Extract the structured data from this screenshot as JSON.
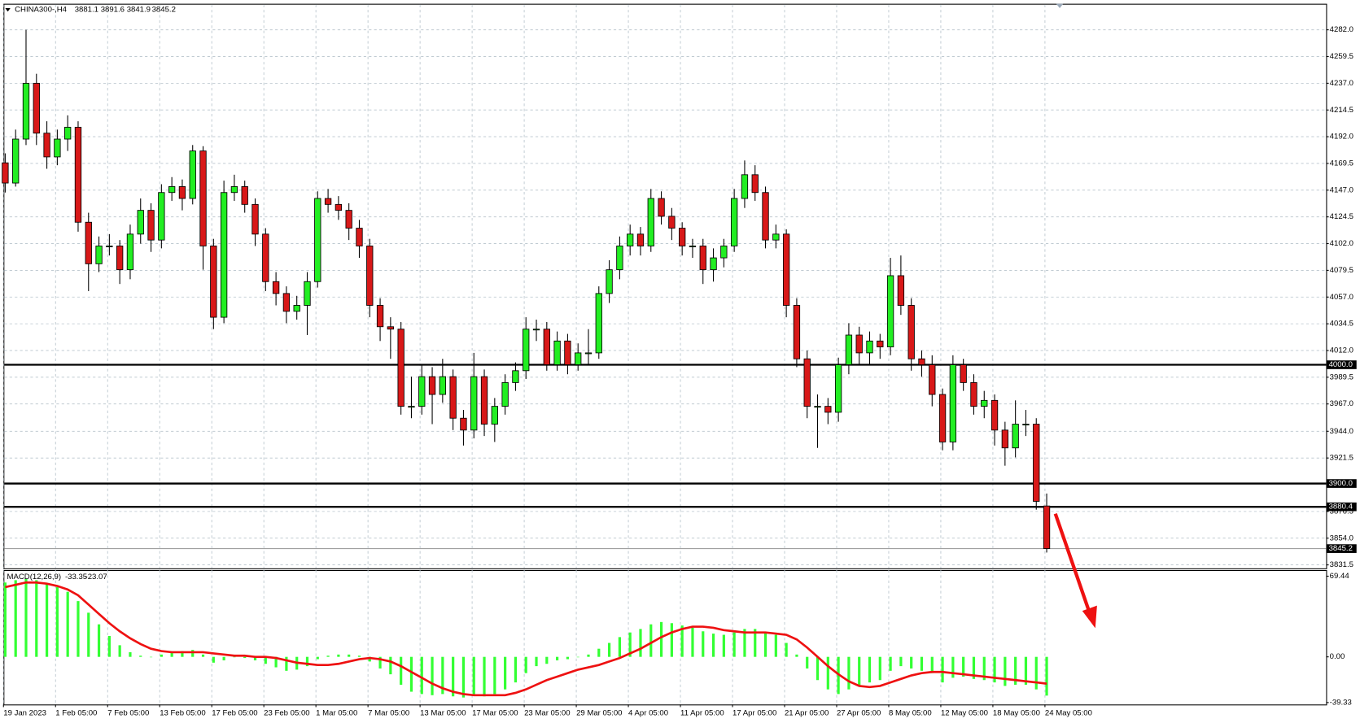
{
  "chart_data": {
    "type": "candlestick",
    "symbol": "CHINA300-,H4",
    "up_color": "#22ee22",
    "down_color": "#d81818",
    "grid": true,
    "categories": [
      "19 Jan 2023",
      null,
      null,
      null,
      null,
      "1 Feb 05:00",
      null,
      null,
      null,
      null,
      "7 Feb 05:00",
      null,
      null,
      null,
      null,
      "13 Feb 05:00",
      null,
      null,
      null,
      null,
      "17 Feb 05:00",
      null,
      null,
      null,
      null,
      "23 Feb 05:00",
      null,
      null,
      null,
      null,
      "1 Mar 05:00",
      null,
      null,
      null,
      null,
      "7 Mar 05:00",
      null,
      null,
      null,
      null,
      "13 Mar 05:00",
      null,
      null,
      null,
      null,
      "17 Mar 05:00",
      null,
      null,
      null,
      null,
      "23 Mar 05:00",
      null,
      null,
      null,
      null,
      "29 Mar 05:00",
      null,
      null,
      null,
      null,
      "4 Apr 05:00",
      null,
      null,
      null,
      null,
      "11 Apr 05:00",
      null,
      null,
      null,
      null,
      "17 Apr 05:00",
      null,
      null,
      null,
      null,
      "21 Apr 05:00",
      null,
      null,
      null,
      null,
      "27 Apr 05:00",
      null,
      null,
      null,
      null,
      "8 May 05:00",
      null,
      null,
      null,
      null,
      "12 May 05:00",
      null,
      null,
      null,
      null,
      "18 May 05:00",
      null,
      null,
      null,
      null,
      "24 May 05:00"
    ],
    "open": [
      4170,
      4153,
      4190,
      4237,
      4195,
      4175,
      4190,
      4200,
      4120,
      4085,
      4100,
      4100,
      4080,
      4110,
      4130,
      4105,
      4145,
      4150,
      4140,
      4180,
      4100,
      4040,
      4145,
      4150,
      4135,
      4110,
      4070,
      4060,
      4045,
      4050,
      4070,
      4140,
      4135,
      4130,
      4115,
      4100,
      4050,
      4032,
      4030,
      3965,
      3965,
      3990,
      3975,
      3990,
      3955,
      3945,
      3990,
      3950,
      3965,
      3985,
      3995,
      4030,
      4030,
      4000,
      4020,
      4000,
      4010,
      4010,
      4060,
      4080,
      4100,
      4110,
      4100,
      4140,
      4125,
      4115,
      4100,
      4100,
      4080,
      4090,
      4100,
      4140,
      4160,
      4145,
      4105,
      4110,
      4050,
      4005,
      3965,
      3965,
      3960,
      4000,
      4025,
      4010,
      4020,
      4015,
      4075,
      4050,
      4005,
      4000,
      3975,
      3935,
      4000,
      3985,
      3965,
      3970,
      3945,
      3930,
      3950,
      3950,
      3881.1
    ],
    "high": [
      4178,
      4198,
      4282,
      4245,
      4205,
      4198,
      4210,
      4205,
      4128,
      4108,
      4110,
      4105,
      4118,
      4140,
      4136,
      4152,
      4158,
      4156,
      4185,
      4184,
      4106,
      4155,
      4160,
      4155,
      4140,
      4115,
      4078,
      4066,
      4058,
      4078,
      4146,
      4148,
      4142,
      4136,
      4122,
      4106,
      4056,
      4040,
      4036,
      3990,
      4000,
      3998,
      4005,
      3996,
      3962,
      4010,
      3996,
      3972,
      3992,
      4002,
      4040,
      4038,
      4036,
      4028,
      4026,
      4018,
      4030,
      4066,
      4088,
      4108,
      4118,
      4116,
      4148,
      4146,
      4132,
      4120,
      4106,
      4106,
      4098,
      4106,
      4148,
      4172,
      4168,
      4150,
      4118,
      4114,
      4056,
      4012,
      3975,
      3972,
      4006,
      4035,
      4032,
      4028,
      4026,
      4090,
      4092,
      4056,
      4012,
      4008,
      3980,
      4008,
      4005,
      3992,
      3978,
      3975,
      3952,
      3970,
      3962,
      3955,
      3891.6
    ],
    "low": [
      4145,
      4150,
      4185,
      4185,
      4165,
      4168,
      4180,
      4112,
      4062,
      4078,
      4092,
      4068,
      4072,
      4102,
      4095,
      4098,
      4138,
      4130,
      4135,
      4080,
      4030,
      4035,
      4138,
      4128,
      4100,
      4062,
      4050,
      4035,
      4038,
      4025,
      4065,
      4128,
      4122,
      4105,
      4090,
      4040,
      4020,
      4005,
      3958,
      3955,
      3958,
      3950,
      3968,
      3945,
      3932,
      3938,
      3940,
      3935,
      3958,
      3978,
      3988,
      4020,
      3995,
      3995,
      3992,
      3995,
      4000,
      4005,
      4052,
      4072,
      4092,
      4092,
      4095,
      4118,
      4105,
      4092,
      4090,
      4068,
      4070,
      4082,
      4095,
      4132,
      4138,
      4098,
      4098,
      4040,
      3998,
      3955,
      3930,
      3950,
      3952,
      3992,
      4000,
      4000,
      4005,
      4008,
      4042,
      3995,
      3990,
      3965,
      3928,
      3928,
      3978,
      3958,
      3955,
      3932,
      3915,
      3922,
      3940,
      3878,
      3841.9
    ],
    "close": [
      4153,
      4190,
      4237,
      4195,
      4175,
      4190,
      4200,
      4120,
      4085,
      4100,
      4100,
      4080,
      4110,
      4130,
      4105,
      4145,
      4150,
      4140,
      4180,
      4100,
      4040,
      4145,
      4150,
      4135,
      4110,
      4070,
      4060,
      4045,
      4050,
      4070,
      4140,
      4135,
      4130,
      4115,
      4100,
      4050,
      4032,
      4030,
      3965,
      3965,
      3990,
      3975,
      3990,
      3955,
      3945,
      3990,
      3950,
      3965,
      3985,
      3995,
      4030,
      4030,
      4000,
      4020,
      4000,
      4010,
      4010,
      4060,
      4080,
      4100,
      4110,
      4100,
      4140,
      4125,
      4115,
      4100,
      4100,
      4080,
      4090,
      4100,
      4140,
      4160,
      4145,
      4105,
      4110,
      4050,
      4005,
      3965,
      3965,
      3960,
      4000,
      4025,
      4010,
      4020,
      4015,
      4075,
      4050,
      4005,
      4000,
      3975,
      3935,
      4000,
      3985,
      3965,
      3970,
      3945,
      3930,
      3950,
      3950,
      3885,
      3845.2
    ],
    "ylim": [
      3828.6,
      4303.2
    ],
    "yticks": [
      {
        "value": 4282,
        "label": "4282.0"
      },
      4259.5,
      {
        "value": 4237,
        "label": "4237.0"
      },
      4214.5,
      {
        "value": 4192,
        "label": "4192.0"
      },
      4169.5,
      {
        "value": 4147,
        "label": "4147.0"
      },
      4124.5,
      {
        "value": 4102,
        "label": "4102.0"
      },
      4079.5,
      {
        "value": 4057,
        "label": "4057.0"
      },
      4034.5,
      {
        "value": 4012,
        "label": "4012.0"
      },
      3989.5,
      {
        "value": 3967,
        "label": "3967.0"
      },
      {
        "value": 3944,
        "label": "3944.0"
      },
      3921.5,
      3876.5,
      {
        "value": 3854,
        "label": "3854.0"
      },
      3831.5
    ],
    "levels": [
      {
        "value": 4000,
        "label": "4000.0"
      },
      {
        "value": 3900,
        "label": "3900.0"
      },
      3880.4
    ],
    "macd": {
      "name": "MACD(12,26,9)",
      "histogram_color": "#33ff33",
      "signal_color": "#ee1111",
      "histogram": [
        64,
        66,
        67,
        66,
        63,
        60,
        56,
        48,
        38,
        28,
        18,
        10,
        4,
        1,
        0,
        2,
        4,
        5,
        6,
        2,
        -5,
        -3,
        0,
        -1,
        -3,
        -6,
        -9,
        -12,
        -11,
        -8,
        -2,
        1,
        2,
        2,
        1,
        -4,
        -10,
        -15,
        -24,
        -30,
        -32,
        -33,
        -32,
        -34,
        -35,
        -33,
        -34,
        -32,
        -28,
        -22,
        -14,
        -8,
        -6,
        -3,
        -2,
        0,
        2,
        7,
        12,
        17,
        21,
        24,
        28,
        30,
        29,
        27,
        25,
        22,
        20,
        19,
        21,
        24,
        24,
        21,
        19,
        12,
        2,
        -10,
        -20,
        -28,
        -32,
        -28,
        -25,
        -22,
        -20,
        -12,
        -8,
        -10,
        -12,
        -14,
        -22,
        -18,
        -17,
        -19,
        -20,
        -22,
        -25,
        -24,
        -24,
        -28,
        -33.35
      ],
      "signal": [
        60,
        62,
        64,
        64,
        63,
        61,
        58,
        53,
        45,
        37,
        29,
        22,
        16,
        11,
        7,
        5,
        4,
        4,
        4,
        4,
        3,
        2,
        1,
        1,
        0,
        0,
        -1,
        -3,
        -5,
        -6,
        -7,
        -7,
        -6,
        -4,
        -2,
        -1,
        -2,
        -4,
        -8,
        -13,
        -18,
        -23,
        -27,
        -30,
        -32,
        -33,
        -33,
        -33,
        -33,
        -31,
        -28,
        -24,
        -20,
        -17,
        -14,
        -11,
        -9,
        -7,
        -4,
        -1,
        3,
        7,
        12,
        17,
        21,
        24,
        26,
        26,
        25,
        23,
        22,
        21,
        21,
        21,
        20,
        19,
        15,
        8,
        0,
        -8,
        -15,
        -21,
        -25,
        -26,
        -25,
        -22,
        -19,
        -16,
        -14,
        -13,
        -13,
        -14,
        -15,
        -16,
        -17,
        -18,
        -19,
        -20,
        -21,
        -22,
        -23.07
      ],
      "ylim": [
        -41,
        74.7
      ],
      "yticks": [
        69.44,
        {
          "value": 0,
          "label": "0.00"
        },
        -39.33
      ]
    }
  }
}
